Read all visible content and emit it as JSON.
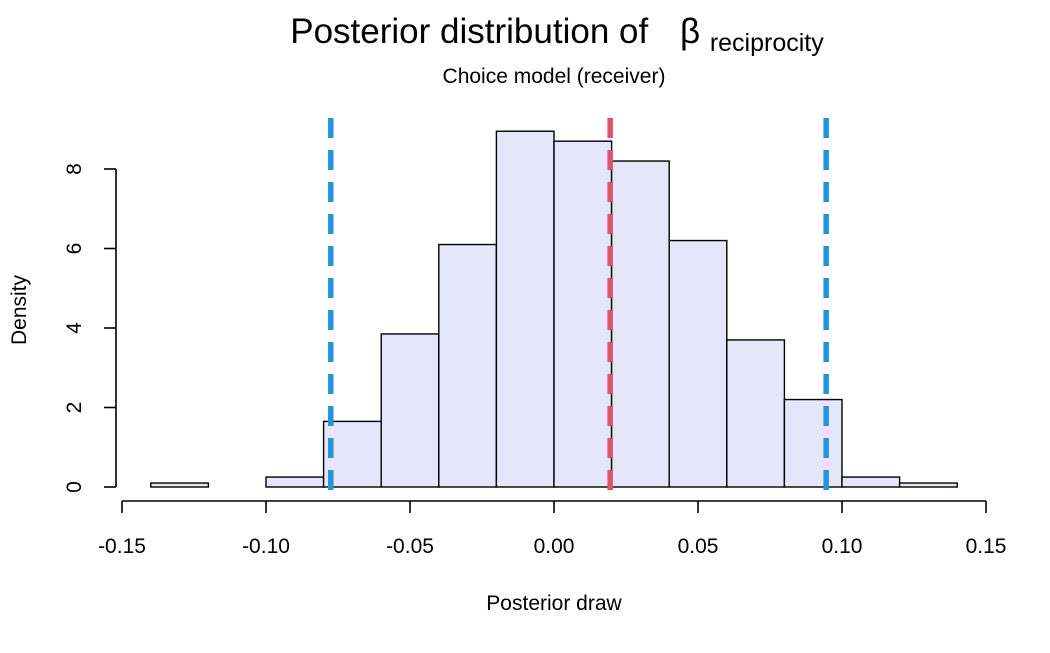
{
  "chart_data": {
    "type": "bar",
    "title": "Posterior distribution of",
    "title_symbol": "β",
    "title_subscript": "reciprocity",
    "subtitle": "Choice model (receiver)",
    "xlabel": "Posterior draw",
    "ylabel": "Density",
    "xlim": [
      -0.15,
      0.15
    ],
    "ylim": [
      0,
      9.2
    ],
    "x_ticks": [
      -0.15,
      -0.1,
      -0.05,
      0.0,
      0.05,
      0.1,
      0.15
    ],
    "x_tick_labels": [
      "-0.15",
      "-0.10",
      "-0.05",
      "0.00",
      "0.05",
      "0.10",
      "0.15"
    ],
    "y_ticks": [
      0,
      2,
      4,
      6,
      8
    ],
    "y_tick_labels": [
      "0",
      "2",
      "4",
      "6",
      "8"
    ],
    "bins": [
      {
        "x0": -0.14,
        "x1": -0.12,
        "density": 0.1
      },
      {
        "x0": -0.12,
        "x1": -0.1,
        "density": 0.0
      },
      {
        "x0": -0.1,
        "x1": -0.08,
        "density": 0.25
      },
      {
        "x0": -0.08,
        "x1": -0.06,
        "density": 1.65
      },
      {
        "x0": -0.06,
        "x1": -0.04,
        "density": 3.85
      },
      {
        "x0": -0.04,
        "x1": -0.02,
        "density": 6.1
      },
      {
        "x0": -0.02,
        "x1": 0.0,
        "density": 8.95
      },
      {
        "x0": 0.0,
        "x1": 0.02,
        "density": 8.7
      },
      {
        "x0": 0.02,
        "x1": 0.04,
        "density": 8.2
      },
      {
        "x0": 0.04,
        "x1": 0.06,
        "density": 6.2
      },
      {
        "x0": 0.06,
        "x1": 0.08,
        "density": 3.7
      },
      {
        "x0": 0.08,
        "x1": 0.1,
        "density": 2.2
      },
      {
        "x0": 0.1,
        "x1": 0.12,
        "density": 0.25
      },
      {
        "x0": 0.12,
        "x1": 0.14,
        "density": 0.1
      }
    ],
    "vlines": [
      {
        "name": "lower-interval",
        "x": -0.0775,
        "color": "#2196d8",
        "style": "dashed"
      },
      {
        "name": "posterior-mean",
        "x": 0.0195,
        "color": "#df536b",
        "style": "dashed"
      },
      {
        "name": "upper-interval",
        "x": 0.0945,
        "color": "#2196d8",
        "style": "dashed"
      }
    ],
    "bar_fill": "#e6e6fa",
    "bar_stroke": "#000000",
    "grid": false,
    "legend": "none"
  }
}
